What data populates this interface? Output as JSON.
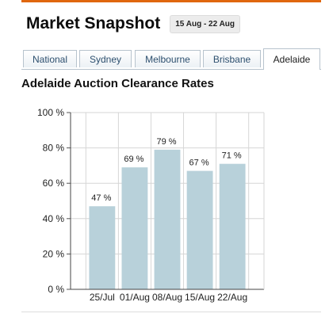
{
  "header": {
    "title": "Market Snapshot",
    "date_range": "15 Aug - 22 Aug"
  },
  "tabs": [
    {
      "label": "National",
      "active": false
    },
    {
      "label": "Sydney",
      "active": false
    },
    {
      "label": "Melbourne",
      "active": false
    },
    {
      "label": "Brisbane",
      "active": false
    },
    {
      "label": "Adelaide",
      "active": true
    }
  ],
  "colors": {
    "accent": "#e0670f",
    "bar": "#b8d1da",
    "tab_text": "#2d4f6e"
  },
  "chart_data": {
    "type": "bar",
    "title": "Adelaide Auction Clearance Rates",
    "categories": [
      "25/Jul",
      "01/Aug",
      "08/Aug",
      "15/Aug",
      "22/Aug"
    ],
    "values": [
      47,
      69,
      79,
      67,
      71
    ],
    "data_labels": [
      "47 %",
      "69 %",
      "79 %",
      "67 %",
      "71 %"
    ],
    "ylim": [
      0,
      100
    ],
    "yticks": [
      0,
      20,
      40,
      60,
      80,
      100
    ],
    "ytick_labels": [
      "0 %",
      "20 %",
      "40 %",
      "60 %",
      "80 %",
      "100 %"
    ],
    "grid": true,
    "xlabel": "",
    "ylabel": ""
  }
}
